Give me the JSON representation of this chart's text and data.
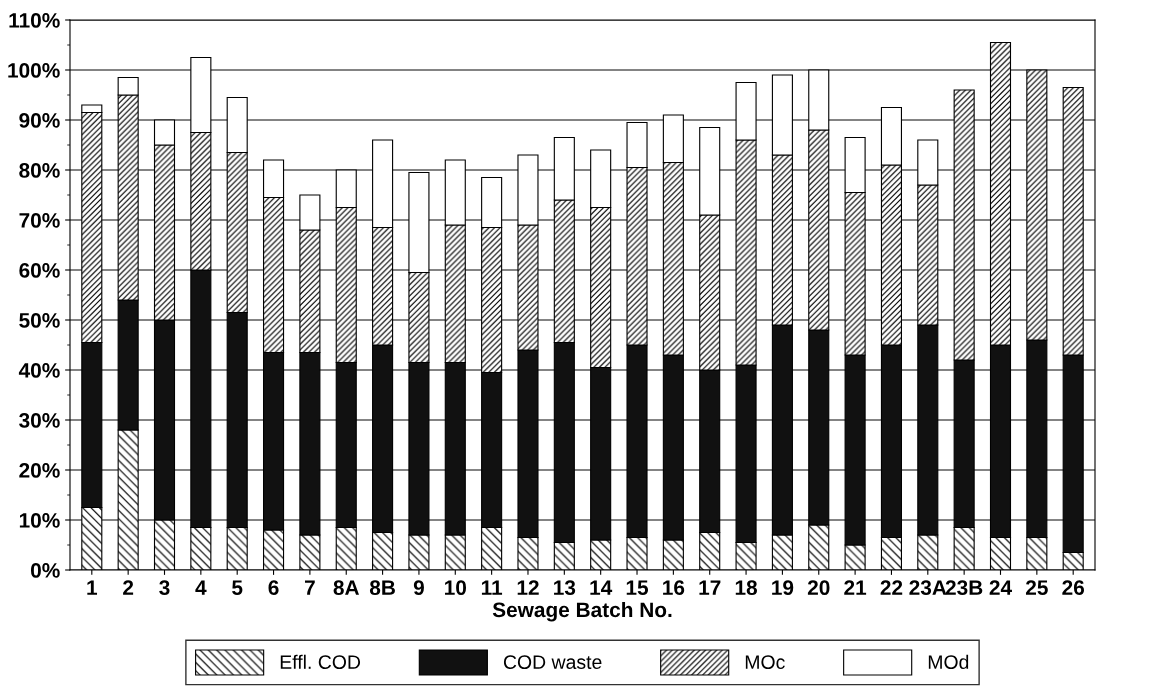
{
  "chart_data": {
    "type": "bar",
    "stacked": true,
    "xlabel": "Sewage Batch No.",
    "categories": [
      "1",
      "2",
      "3",
      "4",
      "5",
      "6",
      "7",
      "8A",
      "8B",
      "9",
      "10",
      "11",
      "12",
      "13",
      "14",
      "15",
      "16",
      "17",
      "18",
      "19",
      "20",
      "21",
      "22",
      "23A",
      "23B",
      "24",
      "25",
      "26"
    ],
    "series": [
      {
        "name": "Effl. COD",
        "color": "#000000",
        "values": [
          12.5,
          28,
          10,
          8.5,
          8.5,
          8,
          7,
          8.5,
          7.5,
          7,
          7,
          8.5,
          6.5,
          5.5,
          6,
          6.5,
          6,
          7.5,
          5.5,
          7,
          9,
          5,
          6.5,
          7,
          8.5,
          6.5,
          6.5,
          3.5
        ]
      },
      {
        "name": "COD waste",
        "color": "#111111",
        "values": [
          33,
          26,
          40,
          51.5,
          43,
          35.5,
          36.5,
          33,
          37.5,
          34.5,
          34.5,
          31,
          37.5,
          40,
          34.5,
          38.5,
          37,
          32.5,
          35.5,
          42,
          39,
          38,
          38.5,
          42,
          33.5,
          38.5,
          39.5,
          39.5
        ]
      },
      {
        "name": "MOc",
        "color": "#000000",
        "values": [
          46,
          41,
          35,
          27.5,
          32,
          31,
          24.5,
          31,
          23.5,
          18,
          27.5,
          29,
          25,
          28.5,
          32,
          35.5,
          38.5,
          31,
          45,
          34,
          40,
          32.5,
          36,
          28,
          54,
          60.5,
          54,
          53.5
        ]
      },
      {
        "name": "MOd",
        "color": "#ffffff",
        "values": [
          1.5,
          3.5,
          5,
          15,
          11,
          7.5,
          7,
          7.5,
          17.5,
          20,
          13,
          10,
          14,
          12.5,
          11.5,
          9,
          9.5,
          17.5,
          11.5,
          16,
          12,
          11,
          11.5,
          9,
          null,
          null,
          null,
          null
        ]
      }
    ],
    "ylim": [
      0,
      110
    ],
    "yticks": [
      {
        "value": 0,
        "label": "0%"
      },
      {
        "value": 10,
        "label": "10%"
      },
      {
        "value": 20,
        "label": "20%"
      },
      {
        "value": 30,
        "label": "30%"
      },
      {
        "value": 40,
        "label": "40%"
      },
      {
        "value": 50,
        "label": "50%"
      },
      {
        "value": 60,
        "label": "60%"
      },
      {
        "value": 70,
        "label": "70%"
      },
      {
        "value": 80,
        "label": "80%"
      },
      {
        "value": 90,
        "label": "90%"
      },
      {
        "value": 100,
        "label": "100%"
      },
      {
        "value": 110,
        "label": "110%"
      }
    ],
    "grid": "y",
    "legend": "bottom"
  }
}
